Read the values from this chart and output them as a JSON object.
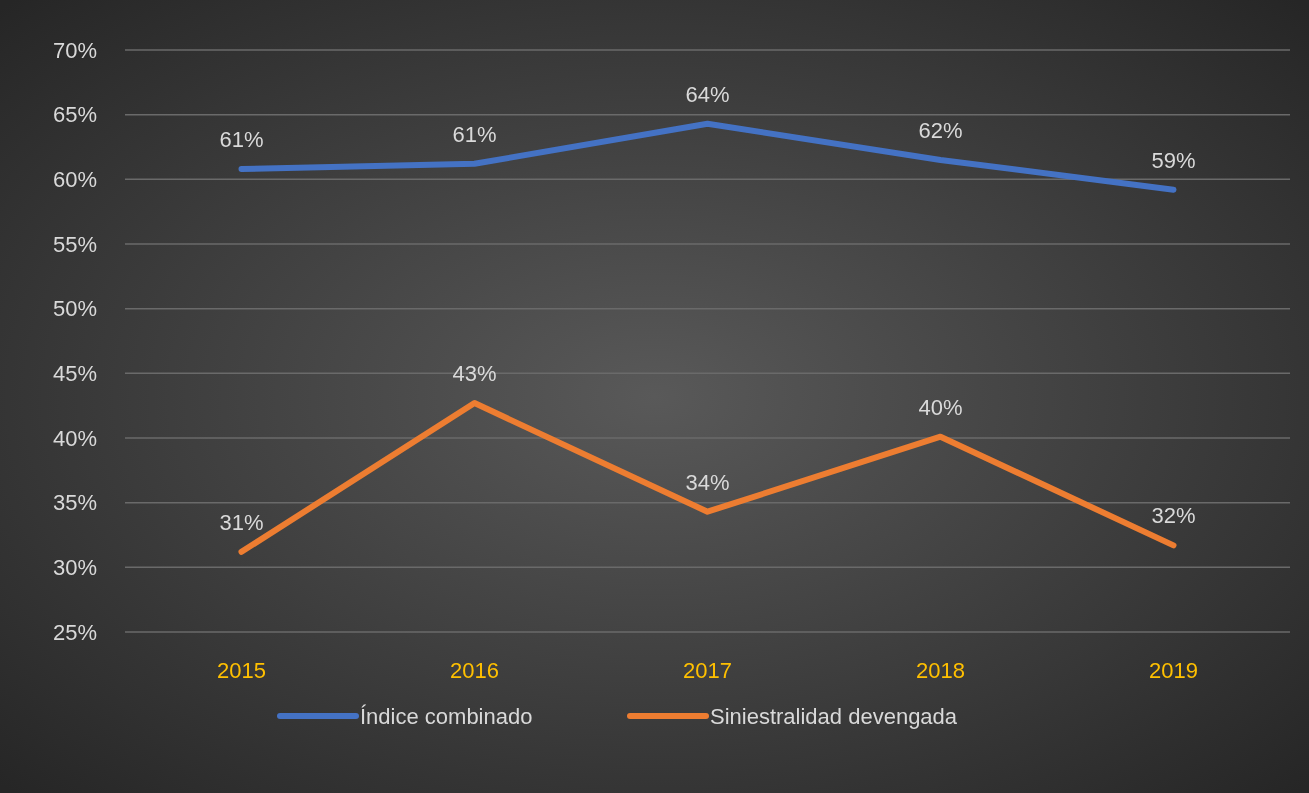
{
  "chart_data": {
    "type": "line",
    "categories": [
      "2015",
      "2016",
      "2017",
      "2018",
      "2019"
    ],
    "series": [
      {
        "name": "Índice combinado",
        "color": "#4472c4",
        "values": [
          60.8,
          61.2,
          64.3,
          61.5,
          59.2
        ],
        "value_labels": [
          "61%",
          "61%",
          "64%",
          "62%",
          "59%"
        ]
      },
      {
        "name": "Siniestralidad devengada",
        "color": "#ed7d31",
        "values": [
          31.2,
          42.7,
          34.3,
          40.1,
          31.7
        ],
        "value_labels": [
          "31%",
          "43%",
          "34%",
          "40%",
          "32%"
        ]
      }
    ],
    "ylim": [
      25,
      70
    ],
    "yticks": [
      {
        "value": 25,
        "label": "25%"
      },
      {
        "value": 30,
        "label": "30%"
      },
      {
        "value": 35,
        "label": "35%"
      },
      {
        "value": 40,
        "label": "40%"
      },
      {
        "value": 45,
        "label": "45%"
      },
      {
        "value": 50,
        "label": "50%"
      },
      {
        "value": 55,
        "label": "55%"
      },
      {
        "value": 60,
        "label": "60%"
      },
      {
        "value": 65,
        "label": "65%"
      },
      {
        "value": 70,
        "label": "70%"
      }
    ],
    "grid": "y",
    "legend": "bottom",
    "marker": "none",
    "line_style": "solid"
  }
}
